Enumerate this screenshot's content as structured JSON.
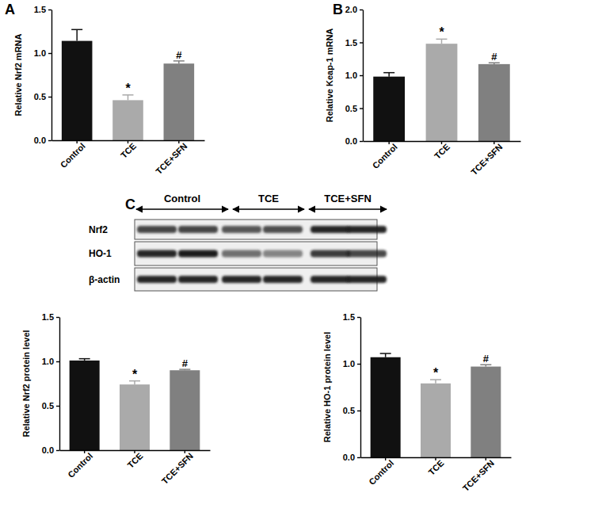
{
  "chart_data": [
    {
      "type": "bar",
      "y_label": "Relative Nrf2 mRNA",
      "categories": [
        "Control",
        "TCE",
        "TCE+SFN"
      ],
      "values": [
        1.14,
        0.46,
        0.88
      ],
      "errors": [
        0.13,
        0.06,
        0.03
      ],
      "colors": [
        "#111111",
        "#aaaaaa",
        "#808080"
      ],
      "ylim": [
        0,
        1.5
      ],
      "yticks": [
        {
          "value": 0,
          "label": "0.0"
        },
        0.5,
        {
          "value": 1,
          "label": "1.0"
        },
        1.5
      ],
      "grid": false,
      "annotations": [
        {
          "x": "TCE",
          "text": "*"
        },
        {
          "x": "TCE+SFN",
          "text": "#"
        }
      ]
    },
    {
      "type": "bar",
      "y_label": "Relative Keap-1 mRNA",
      "categories": [
        "Control",
        "TCE",
        "TCE+SFN"
      ],
      "values": [
        0.98,
        1.48,
        1.17
      ],
      "errors": [
        0.06,
        0.07,
        0.02
      ],
      "colors": [
        "#111111",
        "#aaaaaa",
        "#808080"
      ],
      "ylim": [
        0,
        2
      ],
      "yticks": [
        {
          "value": 0,
          "label": "0.0"
        },
        0.5,
        {
          "value": 1,
          "label": "1.0"
        },
        1.5,
        {
          "value": 2,
          "label": "2.0"
        }
      ],
      "grid": false,
      "annotations": [
        {
          "x": "TCE",
          "text": "*"
        },
        {
          "x": "TCE+SFN",
          "text": "#"
        }
      ]
    },
    {
      "type": "bar",
      "y_label": "Relative Nrf2 protein level",
      "categories": [
        "Control",
        "TCE",
        "TCE+SFN"
      ],
      "values": [
        1.01,
        0.74,
        0.9
      ],
      "errors": [
        0.02,
        0.04,
        0.01
      ],
      "colors": [
        "#111111",
        "#aaaaaa",
        "#808080"
      ],
      "ylim": [
        0,
        1.5
      ],
      "yticks": [
        {
          "value": 0,
          "label": "0.0"
        },
        0.5,
        {
          "value": 1,
          "label": "1.0"
        },
        1.5
      ],
      "grid": false,
      "annotations": [
        {
          "x": "TCE",
          "text": "*"
        },
        {
          "x": "TCE+SFN",
          "text": "#"
        }
      ]
    },
    {
      "type": "bar",
      "y_label": "Relative HO-1 protein level",
      "categories": [
        "Control",
        "TCE",
        "TCE+SFN"
      ],
      "values": [
        1.07,
        0.79,
        0.97
      ],
      "errors": [
        0.04,
        0.04,
        0.02
      ],
      "colors": [
        "#111111",
        "#aaaaaa",
        "#808080"
      ],
      "ylim": [
        0,
        1.5
      ],
      "yticks": [
        {
          "value": 0,
          "label": "0.0"
        },
        0.5,
        {
          "value": 1,
          "label": "1.0"
        },
        1.5
      ],
      "grid": false,
      "annotations": [
        {
          "x": "TCE",
          "text": "*"
        },
        {
          "x": "TCE+SFN",
          "text": "#"
        }
      ]
    }
  ],
  "figure": {
    "panel_labels": [
      "A",
      "B",
      "C"
    ]
  },
  "blot": {
    "groups": [
      "Control",
      "TCE",
      "TCE+SFN"
    ],
    "rows": [
      "Nrf2",
      "HO-1",
      "β-actin"
    ]
  }
}
